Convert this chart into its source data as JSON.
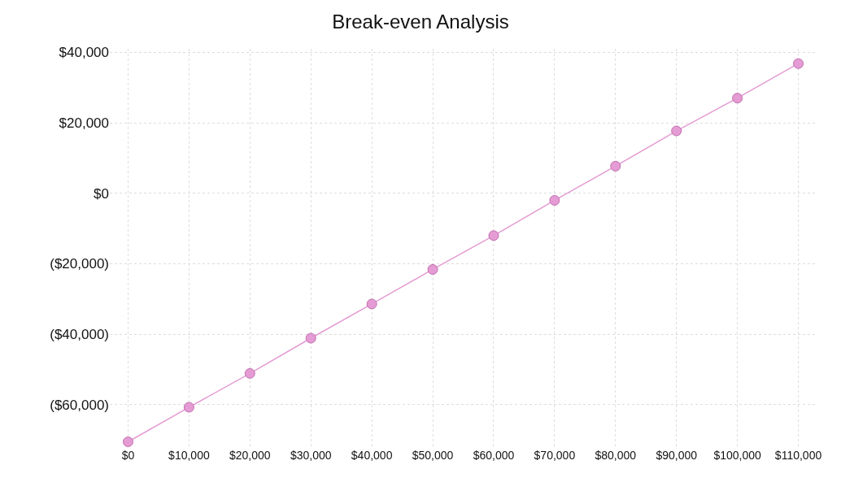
{
  "chart_data": {
    "type": "line",
    "title": "Break-even Analysis",
    "x": [
      0,
      10000,
      20000,
      30000,
      40000,
      50000,
      60000,
      70000,
      80000,
      90000,
      100000,
      110000
    ],
    "series": [
      {
        "color": "#e59bd3",
        "values": [
          -70500,
          -60700,
          -51100,
          -41100,
          -31400,
          -21600,
          -12000,
          -2000,
          7700,
          17700,
          27000,
          36800
        ]
      }
    ],
    "xlim": [
      -3000,
      113000
    ],
    "xticks": [
      {
        "value": 0,
        "label": "$0"
      },
      {
        "value": 10000,
        "label": "$10,000"
      },
      {
        "value": 20000,
        "label": "$20,000"
      },
      {
        "value": 30000,
        "label": "$30,000"
      },
      {
        "value": 40000,
        "label": "$40,000"
      },
      {
        "value": 50000,
        "label": "$50,000"
      },
      {
        "value": 60000,
        "label": "$60,000"
      },
      {
        "value": 70000,
        "label": "$70,000"
      },
      {
        "value": 80000,
        "label": "$80,000"
      },
      {
        "value": 90000,
        "label": "$90,000"
      },
      {
        "value": 100000,
        "label": "$100,000"
      },
      {
        "value": 110000,
        "label": "$110,000"
      }
    ],
    "ylim": [
      -72000,
      41000
    ],
    "yticks": [
      {
        "value": -60000,
        "label": "($60,000)"
      },
      {
        "value": -40000,
        "label": "($40,000)"
      },
      {
        "value": -20000,
        "label": "($20,000)"
      },
      {
        "value": 0,
        "label": "$0"
      },
      {
        "value": 20000,
        "label": "$20,000"
      },
      {
        "value": 40000,
        "label": "$40,000"
      }
    ],
    "grid": true,
    "marker": "circle",
    "line_style": "solid",
    "legend": false
  }
}
